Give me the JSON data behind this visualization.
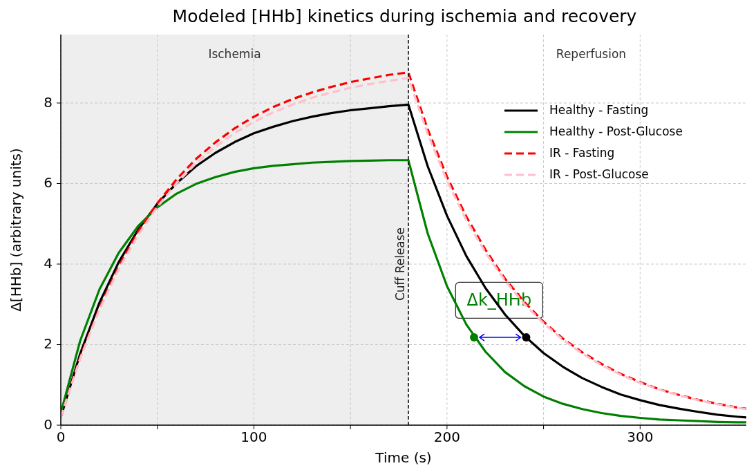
{
  "chart_data": {
    "type": "line",
    "title": "Modeled [HHb] kinetics during ischemia and recovery",
    "xlabel": "Time (s)",
    "ylabel": "Δ[HHb] (arbitrary units)",
    "x": [
      0,
      10,
      20,
      30,
      40,
      50,
      60,
      70,
      80,
      90,
      100,
      110,
      120,
      130,
      140,
      150,
      160,
      170,
      180,
      190,
      200,
      210,
      220,
      230,
      240,
      250,
      260,
      270,
      280,
      290,
      300,
      310,
      320,
      330,
      340,
      350,
      355
    ],
    "series": [
      {
        "name": "Healthy - Fasting",
        "color": "#000000",
        "line_style": "solid",
        "values": [
          0.2,
          1.77,
          3.04,
          4.05,
          4.85,
          5.5,
          6.01,
          6.43,
          6.76,
          7.03,
          7.25,
          7.41,
          7.55,
          7.66,
          7.75,
          7.82,
          7.87,
          7.92,
          7.96,
          6.43,
          5.2,
          4.2,
          3.4,
          2.75,
          2.22,
          1.79,
          1.45,
          1.17,
          0.95,
          0.76,
          0.62,
          0.5,
          0.41,
          0.33,
          0.26,
          0.21,
          0.19
        ]
      },
      {
        "name": "Healthy - Post-Glucose",
        "color": "#008000",
        "line_style": "solid",
        "values": [
          0.3,
          2.09,
          3.37,
          4.28,
          4.94,
          5.41,
          5.75,
          5.99,
          6.16,
          6.29,
          6.38,
          6.44,
          6.48,
          6.52,
          6.54,
          6.56,
          6.57,
          6.58,
          6.58,
          4.76,
          3.45,
          2.5,
          1.82,
          1.32,
          0.97,
          0.71,
          0.53,
          0.4,
          0.3,
          0.23,
          0.18,
          0.14,
          0.12,
          0.1,
          0.08,
          0.07,
          0.07
        ]
      },
      {
        "name": "IR - Fasting",
        "color": "#ff0000",
        "line_style": "dashed",
        "values": [
          0.2,
          1.68,
          2.91,
          3.94,
          4.8,
          5.51,
          6.11,
          6.61,
          7.02,
          7.37,
          7.66,
          7.9,
          8.1,
          8.26,
          8.4,
          8.52,
          8.61,
          8.7,
          8.76,
          7.35,
          6.17,
          5.18,
          4.35,
          3.64,
          3.06,
          2.57,
          2.15,
          1.81,
          1.52,
          1.27,
          1.07,
          0.89,
          0.75,
          0.63,
          0.53,
          0.44,
          0.41
        ]
      },
      {
        "name": "IR - Post-Glucose",
        "color": "#ffc0cb",
        "line_style": "dashed",
        "values": [
          0.2,
          1.65,
          2.87,
          3.88,
          4.72,
          5.42,
          6.01,
          6.5,
          6.91,
          7.25,
          7.53,
          7.77,
          7.96,
          8.13,
          8.26,
          8.38,
          8.47,
          8.55,
          8.62,
          7.23,
          6.07,
          5.09,
          4.28,
          3.59,
          3.01,
          2.53,
          2.12,
          1.78,
          1.49,
          1.25,
          1.05,
          0.88,
          0.74,
          0.62,
          0.52,
          0.43,
          0.4
        ]
      },
      {
        "type": "scatter",
        "x": [
          214
        ],
        "color": "#008000",
        "marker": "circle",
        "values": [
          2.18
        ]
      },
      {
        "type": "scatter",
        "x": [
          241
        ],
        "color": "#000000",
        "marker": "circle",
        "values": [
          2.18
        ]
      }
    ],
    "xlim": [
      0,
      355
    ],
    "xticks": [
      0,
      {
        "value": 50,
        "label": null
      },
      100,
      {
        "value": 150,
        "label": null
      },
      200,
      {
        "value": 250,
        "label": null
      },
      300
    ],
    "ylim": [
      0,
      9.7
    ],
    "yticks": [
      0,
      2,
      4,
      6,
      8
    ],
    "grid": true,
    "legend": "top right",
    "ref_lines": [
      {
        "axis": "x",
        "value": 180,
        "label": "Cuff Release",
        "color": "#000000",
        "line_style": "dashed"
      }
    ],
    "bands": [
      {
        "axis": "x",
        "from": 0,
        "to": 180,
        "label": "Ischemia",
        "color": "#eeeeee"
      }
    ],
    "annotations": [
      "Reperfusion",
      {
        "text": "Δk_HHb",
        "x": 227,
        "y": 3.1
      }
    ]
  }
}
